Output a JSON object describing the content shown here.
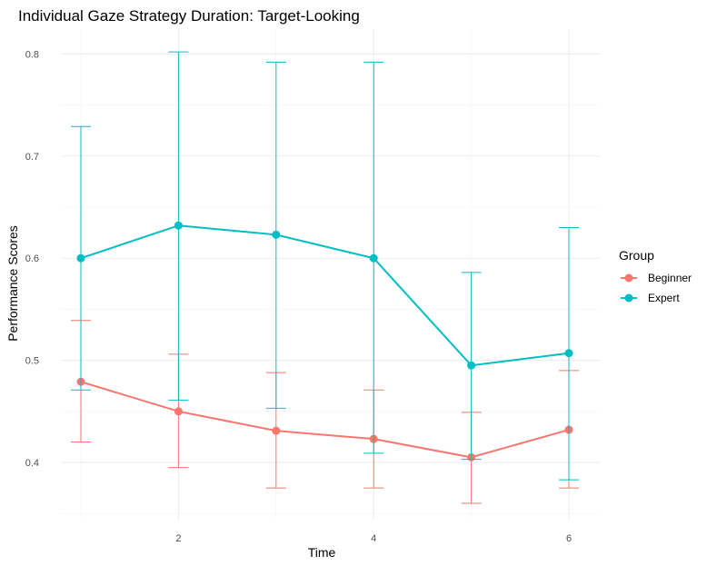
{
  "chart_data": {
    "type": "line",
    "title": "Individual Gaze Strategy Duration: Target-Looking",
    "xlabel": "Time",
    "ylabel": "Performance Scores",
    "x": [
      1,
      2,
      3,
      4,
      5,
      6
    ],
    "xticks": [
      2,
      4,
      6
    ],
    "yticks": [
      0.4,
      0.5,
      0.6,
      0.7,
      0.8
    ],
    "xlim": [
      0.75,
      6.25
    ],
    "ylim": [
      0.35,
      0.82
    ],
    "grid": true,
    "legend": {
      "title": "Group",
      "position": "right"
    },
    "series": [
      {
        "name": "Beginner",
        "color": "#F8766D",
        "values": [
          0.479,
          0.45,
          0.431,
          0.423,
          0.405,
          0.432
        ],
        "lower": [
          0.42,
          0.395,
          0.375,
          0.375,
          0.36,
          0.375
        ],
        "upper": [
          0.539,
          0.506,
          0.488,
          0.471,
          0.449,
          0.49
        ]
      },
      {
        "name": "Expert",
        "color": "#00BFC4",
        "values": [
          0.6,
          0.632,
          0.623,
          0.6,
          0.495,
          0.507
        ],
        "lower": [
          0.471,
          0.461,
          0.453,
          0.409,
          0.403,
          0.383
        ],
        "upper": [
          0.729,
          0.802,
          0.792,
          0.792,
          0.586,
          0.63
        ]
      }
    ]
  }
}
